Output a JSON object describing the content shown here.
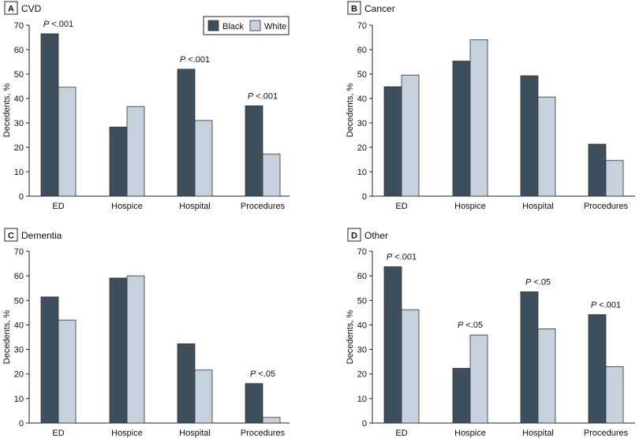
{
  "legend": {
    "items": [
      {
        "label": "Black",
        "color": "#3d4f5c"
      },
      {
        "label": "White",
        "color": "#c5d1dc"
      }
    ]
  },
  "chart_data": [
    {
      "type": "bar",
      "panel_letter": "A",
      "title": "CVD",
      "ylabel": "Decedents, %",
      "ylim": [
        0,
        70
      ],
      "yticks": [
        0,
        10,
        20,
        30,
        40,
        50,
        60,
        70
      ],
      "categories": [
        "ED",
        "Hospice",
        "Hospital",
        "Procedures"
      ],
      "series": [
        {
          "name": "Black",
          "values": [
            66.5,
            28.3,
            52.0,
            37.0
          ]
        },
        {
          "name": "White",
          "values": [
            44.6,
            36.7,
            31.0,
            17.2
          ]
        }
      ],
      "annotations": [
        {
          "category": "ED",
          "p": "P",
          "text": " <.001"
        },
        {
          "category": "Hospital",
          "p": "P",
          "text": " <.001"
        },
        {
          "category": "Procedures",
          "p": "P",
          "text": " <.001"
        }
      ]
    },
    {
      "type": "bar",
      "panel_letter": "B",
      "title": "Cancer",
      "ylabel": "Decedents, %",
      "ylim": [
        0,
        70
      ],
      "yticks": [
        0,
        10,
        20,
        30,
        40,
        50,
        60,
        70
      ],
      "categories": [
        "ED",
        "Hospice",
        "Hospital",
        "Procedures"
      ],
      "series": [
        {
          "name": "Black",
          "values": [
            44.8,
            55.3,
            49.3,
            21.3
          ]
        },
        {
          "name": "White",
          "values": [
            49.6,
            64.0,
            40.6,
            14.6
          ]
        }
      ],
      "annotations": []
    },
    {
      "type": "bar",
      "panel_letter": "C",
      "title": "Dementia",
      "ylabel": "Decedents, %",
      "ylim": [
        0,
        70
      ],
      "yticks": [
        0,
        10,
        20,
        30,
        40,
        50,
        60,
        70
      ],
      "categories": [
        "ED",
        "Hospice",
        "Hospital",
        "Procedures"
      ],
      "series": [
        {
          "name": "Black",
          "values": [
            51.4,
            59.1,
            32.3,
            16.1
          ]
        },
        {
          "name": "White",
          "values": [
            42.0,
            60.0,
            21.6,
            2.3
          ]
        }
      ],
      "annotations": [
        {
          "category": "Procedures",
          "p": "P",
          "text": " <.05"
        }
      ]
    },
    {
      "type": "bar",
      "panel_letter": "D",
      "title": "Other",
      "ylabel": "Decedents, %",
      "ylim": [
        0,
        70
      ],
      "yticks": [
        0,
        10,
        20,
        30,
        40,
        50,
        60,
        70
      ],
      "categories": [
        "ED",
        "Hospice",
        "Hospital",
        "Procedures"
      ],
      "series": [
        {
          "name": "Black",
          "values": [
            63.7,
            22.3,
            53.5,
            44.2
          ]
        },
        {
          "name": "White",
          "values": [
            46.2,
            35.9,
            38.4,
            23.0
          ]
        }
      ],
      "annotations": [
        {
          "category": "ED",
          "p": "P",
          "text": " <.001"
        },
        {
          "category": "Hospice",
          "p": "P",
          "text": " <.05"
        },
        {
          "category": "Hospital",
          "p": "P",
          "text": " <.05"
        },
        {
          "category": "Procedures",
          "p": "P",
          "text": " <.001"
        }
      ]
    }
  ]
}
